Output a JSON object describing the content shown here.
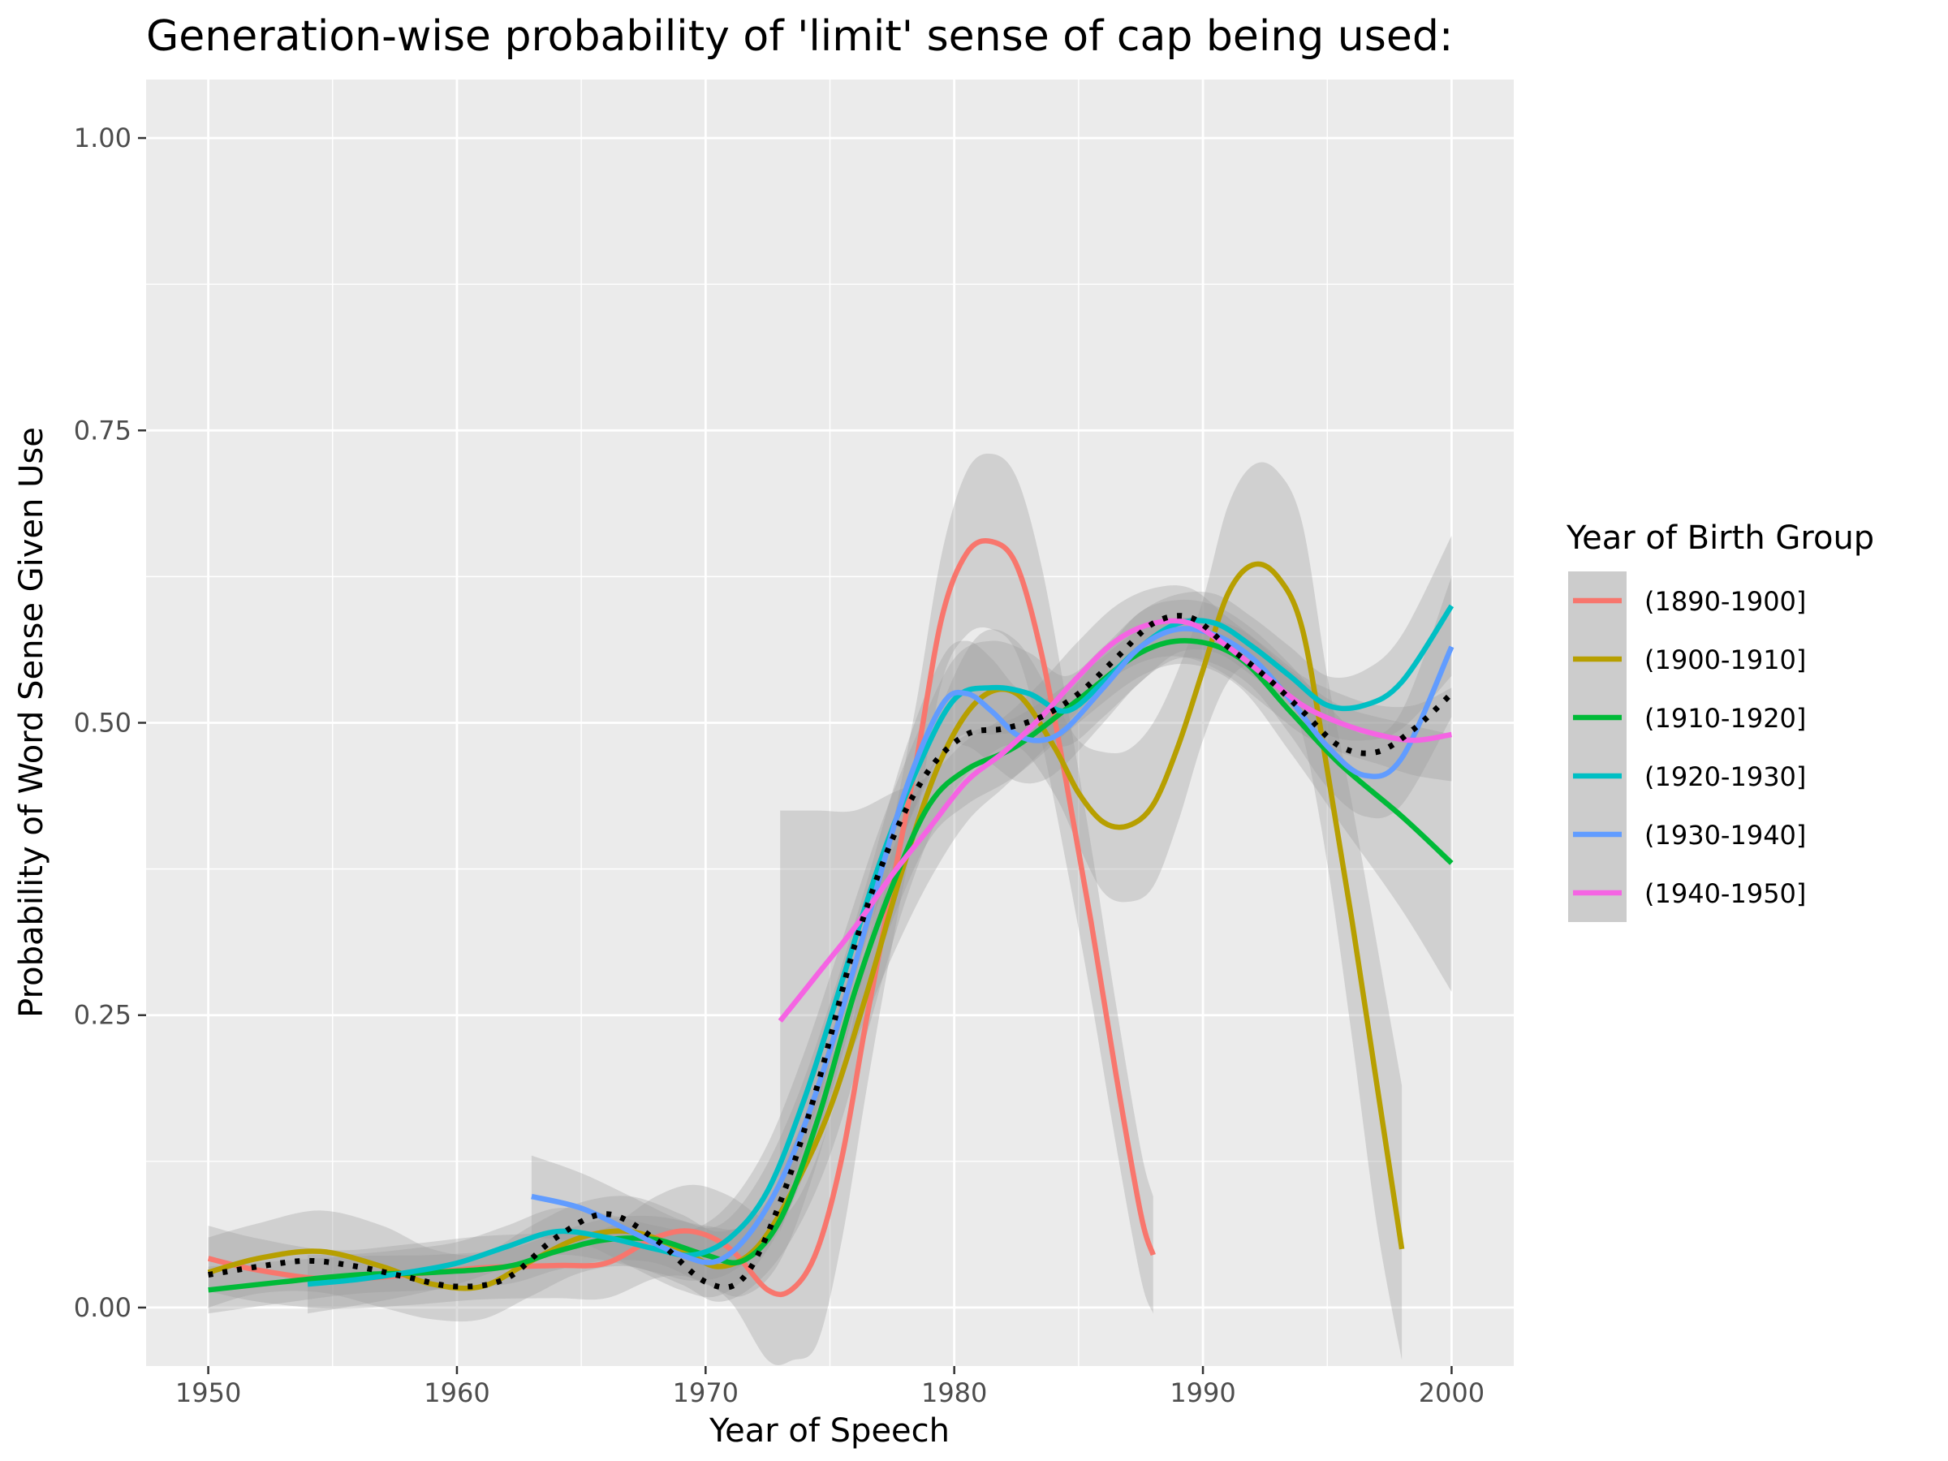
{
  "chart_data": {
    "type": "line",
    "title": "Generation-wise probability of 'limit' sense of cap being used:",
    "xlabel": "Year of Speech",
    "ylabel": "Probability of Word Sense Given Use",
    "xlim": [
      1947.5,
      2002.5
    ],
    "ylim": [
      -0.05,
      1.05
    ],
    "x_ticks": [
      1950,
      1960,
      1970,
      1980,
      1990,
      2000
    ],
    "x_tick_labels": [
      "1950",
      "1960",
      "1970",
      "1980",
      "1990",
      "2000"
    ],
    "y_ticks": [
      0,
      0.25,
      0.5,
      0.75,
      1.0
    ],
    "y_tick_labels": [
      "0.00",
      "0.25",
      "0.50",
      "0.75",
      "1.00"
    ],
    "grid": true,
    "panel_background": "#ebebeb",
    "legend": {
      "title": "Year of Birth Group",
      "position": "right"
    },
    "series": [
      {
        "name": "(1890-1900]",
        "color": "#F8766D",
        "points": [
          [
            1950,
            0.042
          ],
          [
            1952,
            0.032
          ],
          [
            1955,
            0.024
          ],
          [
            1958,
            0.028
          ],
          [
            1961,
            0.034
          ],
          [
            1964,
            0.036
          ],
          [
            1966,
            0.038
          ],
          [
            1968,
            0.06
          ],
          [
            1969.5,
            0.065
          ],
          [
            1971,
            0.05
          ],
          [
            1972.5,
            0.015
          ],
          [
            1973.5,
            0.016
          ],
          [
            1974.5,
            0.05
          ],
          [
            1975.5,
            0.13
          ],
          [
            1976.5,
            0.25
          ],
          [
            1977.5,
            0.36
          ],
          [
            1978.5,
            0.47
          ],
          [
            1979.5,
            0.59
          ],
          [
            1980.5,
            0.645
          ],
          [
            1981.5,
            0.655
          ],
          [
            1982.5,
            0.635
          ],
          [
            1983.5,
            0.56
          ],
          [
            1984.5,
            0.45
          ],
          [
            1985.5,
            0.33
          ],
          [
            1986.5,
            0.2
          ],
          [
            1987.5,
            0.08
          ],
          [
            1988,
            0.045
          ]
        ],
        "band": [
          0.028,
          0.027,
          0.025,
          0.026,
          0.027,
          0.028,
          0.03,
          0.035,
          0.04,
          0.045,
          0.06,
          0.07,
          0.08,
          0.07,
          0.06,
          0.05,
          0.05,
          0.055,
          0.07,
          0.075,
          0.075,
          0.075,
          0.07,
          0.065,
          0.06,
          0.055,
          0.05
        ]
      },
      {
        "name": "(1900-1910]",
        "color": "#B79F00",
        "points": [
          [
            1950,
            0.03
          ],
          [
            1952,
            0.042
          ],
          [
            1954.5,
            0.048
          ],
          [
            1957,
            0.035
          ],
          [
            1959,
            0.02
          ],
          [
            1961,
            0.018
          ],
          [
            1963,
            0.04
          ],
          [
            1965,
            0.06
          ],
          [
            1967,
            0.065
          ],
          [
            1969,
            0.05
          ],
          [
            1970.5,
            0.035
          ],
          [
            1972,
            0.05
          ],
          [
            1973.5,
            0.1
          ],
          [
            1975,
            0.17
          ],
          [
            1976.5,
            0.27
          ],
          [
            1978,
            0.38
          ],
          [
            1979.5,
            0.47
          ],
          [
            1981,
            0.52
          ],
          [
            1982.5,
            0.525
          ],
          [
            1984,
            0.48
          ],
          [
            1985,
            0.44
          ],
          [
            1986,
            0.415
          ],
          [
            1987,
            0.412
          ],
          [
            1988,
            0.43
          ],
          [
            1989,
            0.48
          ],
          [
            1990,
            0.545
          ],
          [
            1991,
            0.61
          ],
          [
            1992,
            0.635
          ],
          [
            1993,
            0.625
          ],
          [
            1994,
            0.58
          ],
          [
            1995,
            0.46
          ],
          [
            1996,
            0.33
          ],
          [
            1997,
            0.19
          ],
          [
            1998,
            0.05
          ]
        ],
        "band": [
          0.03,
          0.03,
          0.035,
          0.035,
          0.03,
          0.028,
          0.03,
          0.03,
          0.03,
          0.03,
          0.03,
          0.03,
          0.04,
          0.04,
          0.035,
          0.035,
          0.045,
          0.055,
          0.045,
          0.04,
          0.045,
          0.06,
          0.065,
          0.07,
          0.065,
          0.06,
          0.075,
          0.085,
          0.09,
          0.09,
          0.08,
          0.1,
          0.12,
          0.14
        ]
      },
      {
        "name": "(1910-1920]",
        "color": "#00BA38",
        "points": [
          [
            1950,
            0.015
          ],
          [
            1953,
            0.022
          ],
          [
            1956,
            0.028
          ],
          [
            1959,
            0.03
          ],
          [
            1962,
            0.035
          ],
          [
            1964,
            0.048
          ],
          [
            1966,
            0.058
          ],
          [
            1968,
            0.058
          ],
          [
            1970,
            0.045
          ],
          [
            1971.5,
            0.04
          ],
          [
            1973,
            0.075
          ],
          [
            1974.5,
            0.16
          ],
          [
            1976,
            0.27
          ],
          [
            1977.5,
            0.36
          ],
          [
            1979,
            0.43
          ],
          [
            1980.5,
            0.46
          ],
          [
            1982.5,
            0.48
          ],
          [
            1985,
            0.52
          ],
          [
            1987.5,
            0.56
          ],
          [
            1989.5,
            0.57
          ],
          [
            1991.5,
            0.555
          ],
          [
            1993.5,
            0.51
          ],
          [
            1995.5,
            0.465
          ],
          [
            1998,
            0.42
          ],
          [
            2000,
            0.38
          ]
        ],
        "band": [
          0.02,
          0.018,
          0.016,
          0.015,
          0.015,
          0.016,
          0.018,
          0.02,
          0.025,
          0.03,
          0.035,
          0.035,
          0.03,
          0.03,
          0.03,
          0.03,
          0.025,
          0.02,
          0.02,
          0.02,
          0.025,
          0.035,
          0.05,
          0.08,
          0.11
        ]
      },
      {
        "name": "(1920-1930]",
        "color": "#00BFC4",
        "points": [
          [
            1954,
            0.02
          ],
          [
            1956,
            0.024
          ],
          [
            1958,
            0.03
          ],
          [
            1960,
            0.038
          ],
          [
            1962,
            0.052
          ],
          [
            1964,
            0.065
          ],
          [
            1966,
            0.06
          ],
          [
            1968,
            0.05
          ],
          [
            1969.5,
            0.045
          ],
          [
            1971,
            0.06
          ],
          [
            1972.5,
            0.1
          ],
          [
            1974,
            0.18
          ],
          [
            1975.5,
            0.28
          ],
          [
            1977,
            0.38
          ],
          [
            1978.5,
            0.46
          ],
          [
            1980,
            0.52
          ],
          [
            1981.5,
            0.53
          ],
          [
            1983,
            0.525
          ],
          [
            1984.5,
            0.51
          ],
          [
            1986,
            0.535
          ],
          [
            1987.5,
            0.565
          ],
          [
            1989,
            0.585
          ],
          [
            1990.5,
            0.585
          ],
          [
            1992,
            0.565
          ],
          [
            1993.5,
            0.54
          ],
          [
            1995,
            0.515
          ],
          [
            1996.5,
            0.515
          ],
          [
            1998,
            0.535
          ],
          [
            2000,
            0.6
          ]
        ],
        "band": [
          0.025,
          0.022,
          0.02,
          0.018,
          0.018,
          0.02,
          0.02,
          0.02,
          0.022,
          0.03,
          0.04,
          0.04,
          0.035,
          0.03,
          0.03,
          0.035,
          0.04,
          0.035,
          0.03,
          0.03,
          0.03,
          0.025,
          0.025,
          0.025,
          0.025,
          0.025,
          0.03,
          0.04,
          0.06
        ]
      },
      {
        "name": "(1930-1940]",
        "color": "#619CFF",
        "points": [
          [
            1963,
            0.095
          ],
          [
            1965,
            0.085
          ],
          [
            1967,
            0.065
          ],
          [
            1969,
            0.045
          ],
          [
            1970.5,
            0.04
          ],
          [
            1972,
            0.07
          ],
          [
            1973.5,
            0.13
          ],
          [
            1975,
            0.22
          ],
          [
            1976.5,
            0.33
          ],
          [
            1978,
            0.44
          ],
          [
            1979.5,
            0.515
          ],
          [
            1980.5,
            0.525
          ],
          [
            1981.5,
            0.51
          ],
          [
            1982.5,
            0.49
          ],
          [
            1983.5,
            0.485
          ],
          [
            1984.5,
            0.495
          ],
          [
            1986,
            0.53
          ],
          [
            1987.5,
            0.565
          ],
          [
            1989,
            0.58
          ],
          [
            1990.5,
            0.575
          ],
          [
            1992,
            0.555
          ],
          [
            1993.5,
            0.52
          ],
          [
            1995,
            0.48
          ],
          [
            1996.5,
            0.455
          ],
          [
            1998,
            0.47
          ],
          [
            2000,
            0.565
          ]
        ],
        "band": [
          0.035,
          0.03,
          0.03,
          0.03,
          0.03,
          0.035,
          0.04,
          0.04,
          0.035,
          0.035,
          0.04,
          0.045,
          0.045,
          0.04,
          0.035,
          0.03,
          0.03,
          0.03,
          0.025,
          0.025,
          0.025,
          0.03,
          0.035,
          0.035,
          0.04,
          0.06
        ]
      },
      {
        "name": "(1940-1950]",
        "color": "#F564E3",
        "points": [
          [
            1973,
            0.245
          ],
          [
            1974.5,
            0.285
          ],
          [
            1976,
            0.325
          ],
          [
            1977.5,
            0.37
          ],
          [
            1979,
            0.41
          ],
          [
            1980.5,
            0.45
          ],
          [
            1982,
            0.475
          ],
          [
            1983.5,
            0.505
          ],
          [
            1985,
            0.54
          ],
          [
            1986.5,
            0.57
          ],
          [
            1988,
            0.585
          ],
          [
            1989.5,
            0.585
          ],
          [
            1991,
            0.565
          ],
          [
            1992.5,
            0.54
          ],
          [
            1994,
            0.515
          ],
          [
            1995.5,
            0.5
          ],
          [
            1997,
            0.49
          ],
          [
            1998.5,
            0.485
          ],
          [
            2000,
            0.49
          ]
        ],
        "band": [
          0.18,
          0.14,
          0.1,
          0.07,
          0.045,
          0.035,
          0.03,
          0.03,
          0.03,
          0.03,
          0.03,
          0.03,
          0.025,
          0.025,
          0.025,
          0.025,
          0.025,
          0.03,
          0.04
        ]
      },
      {
        "name": "",
        "color": "#000000",
        "dotted": true,
        "points": [
          [
            1950,
            0.028
          ],
          [
            1952,
            0.035
          ],
          [
            1954,
            0.04
          ],
          [
            1956,
            0.035
          ],
          [
            1958,
            0.026
          ],
          [
            1960,
            0.018
          ],
          [
            1962,
            0.025
          ],
          [
            1964,
            0.06
          ],
          [
            1966,
            0.08
          ],
          [
            1968,
            0.058
          ],
          [
            1970,
            0.022
          ],
          [
            1971.5,
            0.025
          ],
          [
            1973,
            0.09
          ],
          [
            1974.5,
            0.19
          ],
          [
            1976,
            0.31
          ],
          [
            1977.5,
            0.4
          ],
          [
            1979,
            0.46
          ],
          [
            1980.5,
            0.49
          ],
          [
            1982,
            0.495
          ],
          [
            1983.5,
            0.505
          ],
          [
            1985,
            0.525
          ],
          [
            1986.5,
            0.555
          ],
          [
            1988,
            0.585
          ],
          [
            1989.5,
            0.59
          ],
          [
            1991,
            0.565
          ],
          [
            1992.5,
            0.54
          ],
          [
            1994,
            0.51
          ],
          [
            1995.5,
            0.48
          ],
          [
            1997,
            0.475
          ],
          [
            1998.5,
            0.495
          ],
          [
            2000,
            0.525
          ]
        ]
      }
    ]
  }
}
